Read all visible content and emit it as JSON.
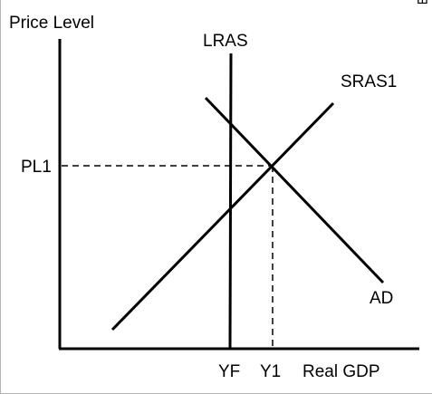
{
  "diagram": {
    "y_axis_label": "Price Level",
    "x_axis_label": "Real GDP",
    "price_tick_label": "PL1",
    "output_tick_labels": [
      "YF",
      "Y1"
    ],
    "curves": {
      "lras": "LRAS",
      "sras": "SRAS1",
      "ad": "AD"
    },
    "corner_mark": "Ш",
    "colors": {
      "line": "#000000",
      "background": "#ffffff",
      "border": "#b3b3b3"
    }
  }
}
